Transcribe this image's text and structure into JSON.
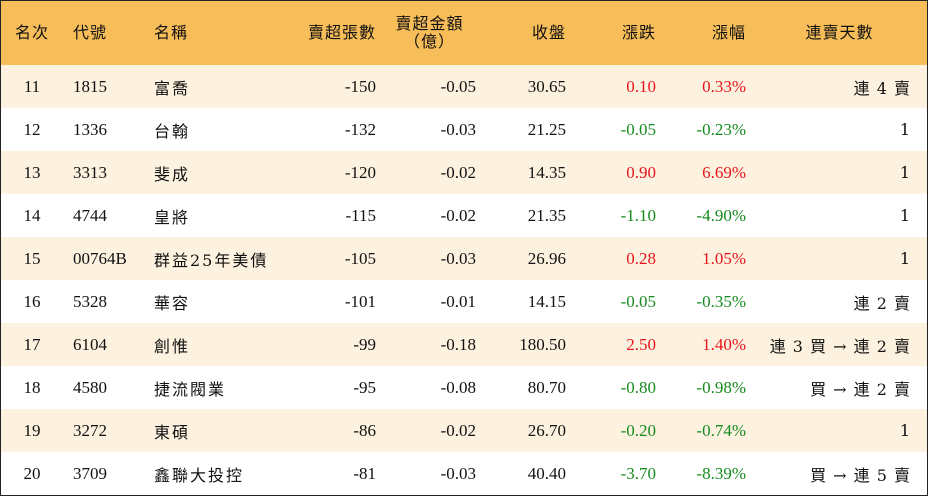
{
  "colors": {
    "header_bg": "#f7bd59",
    "odd_row_bg": "#fcf2df",
    "even_row_bg": "#ffffff",
    "up": "#e8141c",
    "down": "#168a1e"
  },
  "headers": {
    "rank": "名次",
    "code": "代號",
    "name": "名稱",
    "lots": "賣超張數",
    "amount_line1": "賣超金額",
    "amount_line2": "（億）",
    "close": "收盤",
    "change": "漲跌",
    "pct": "漲幅",
    "streak": "連賣天數"
  },
  "rows": [
    {
      "rank": "11",
      "code": "1815",
      "name": "富喬",
      "lots": "-150",
      "amount": "-0.05",
      "close": "30.65",
      "change": "0.10",
      "pct": "0.33%",
      "dir": "up",
      "streak": "連 4 賣"
    },
    {
      "rank": "12",
      "code": "1336",
      "name": "台翰",
      "lots": "-132",
      "amount": "-0.03",
      "close": "21.25",
      "change": "-0.05",
      "pct": "-0.23%",
      "dir": "down",
      "streak": "1"
    },
    {
      "rank": "13",
      "code": "3313",
      "name": "斐成",
      "lots": "-120",
      "amount": "-0.02",
      "close": "14.35",
      "change": "0.90",
      "pct": "6.69%",
      "dir": "up",
      "streak": "1"
    },
    {
      "rank": "14",
      "code": "4744",
      "name": "皇將",
      "lots": "-115",
      "amount": "-0.02",
      "close": "21.35",
      "change": "-1.10",
      "pct": "-4.90%",
      "dir": "down",
      "streak": "1"
    },
    {
      "rank": "15",
      "code": "00764B",
      "name": "群益25年美債",
      "lots": "-105",
      "amount": "-0.03",
      "close": "26.96",
      "change": "0.28",
      "pct": "1.05%",
      "dir": "up",
      "streak": "1"
    },
    {
      "rank": "16",
      "code": "5328",
      "name": "華容",
      "lots": "-101",
      "amount": "-0.01",
      "close": "14.15",
      "change": "-0.05",
      "pct": "-0.35%",
      "dir": "down",
      "streak": "連 2 賣"
    },
    {
      "rank": "17",
      "code": "6104",
      "name": "創惟",
      "lots": "-99",
      "amount": "-0.18",
      "close": "180.50",
      "change": "2.50",
      "pct": "1.40%",
      "dir": "up",
      "streak": "連 3 買 → 連 2 賣"
    },
    {
      "rank": "18",
      "code": "4580",
      "name": "捷流閥業",
      "lots": "-95",
      "amount": "-0.08",
      "close": "80.70",
      "change": "-0.80",
      "pct": "-0.98%",
      "dir": "down",
      "streak": "買 → 連 2 賣"
    },
    {
      "rank": "19",
      "code": "3272",
      "name": "東碩",
      "lots": "-86",
      "amount": "-0.02",
      "close": "26.70",
      "change": "-0.20",
      "pct": "-0.74%",
      "dir": "down",
      "streak": "1"
    },
    {
      "rank": "20",
      "code": "3709",
      "name": "鑫聯大投控",
      "lots": "-81",
      "amount": "-0.03",
      "close": "40.40",
      "change": "-3.70",
      "pct": "-8.39%",
      "dir": "down",
      "streak": "買 → 連 5 賣"
    }
  ]
}
